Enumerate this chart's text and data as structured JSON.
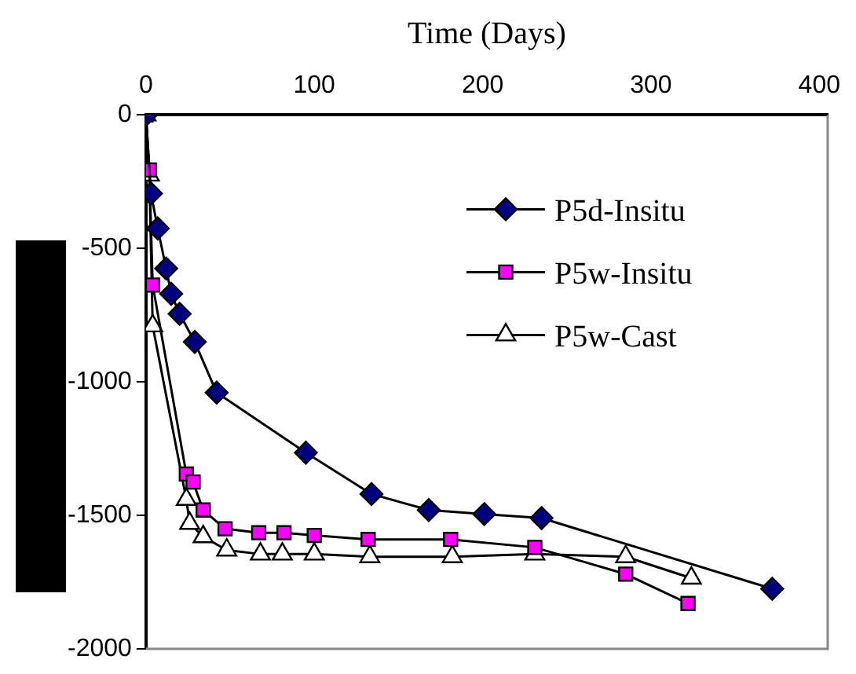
{
  "chart_data": {
    "type": "line",
    "xlabel": "Time (Days)",
    "xlim": [
      0,
      405
    ],
    "xticks": [
      0,
      100,
      200,
      300,
      400
    ],
    "ylim": [
      -2000,
      0
    ],
    "yticks": [
      -2000,
      -1500,
      -1000,
      -500,
      0
    ],
    "grid": false,
    "legend": "top right",
    "series": [
      {
        "name": "P5d-Insitu",
        "color": "#000080",
        "marker": "diamond",
        "x": [
          0,
          3,
          7,
          12,
          15,
          20,
          29,
          42,
          95,
          134,
          168,
          201,
          235,
          372
        ],
        "values": [
          0,
          -294,
          -425,
          -575,
          -670,
          -745,
          -850,
          -1040,
          -1265,
          -1420,
          -1480,
          -1495,
          -1510,
          -1775
        ]
      },
      {
        "name": "P5w-Insitu",
        "color": "#ff00ff",
        "marker": "square",
        "x": [
          0,
          2,
          4,
          24,
          28,
          34,
          47,
          67,
          82,
          100,
          132,
          181,
          231,
          285,
          322
        ],
        "values": [
          0,
          -206,
          -637,
          -1345,
          -1375,
          -1480,
          -1550,
          -1565,
          -1565,
          -1575,
          -1590,
          -1590,
          -1620,
          -1720,
          -1830
        ]
      },
      {
        "name": "P5w-Cast",
        "color": "#ffffff",
        "marker": "triangle",
        "x": [
          0,
          2,
          4,
          24,
          26,
          34,
          48,
          68,
          81,
          100,
          133,
          182,
          231,
          285,
          324
        ],
        "values": [
          0,
          -225,
          -790,
          -1440,
          -1530,
          -1580,
          -1630,
          -1645,
          -1645,
          -1645,
          -1655,
          -1655,
          -1645,
          -1655,
          -1735
        ]
      }
    ]
  }
}
